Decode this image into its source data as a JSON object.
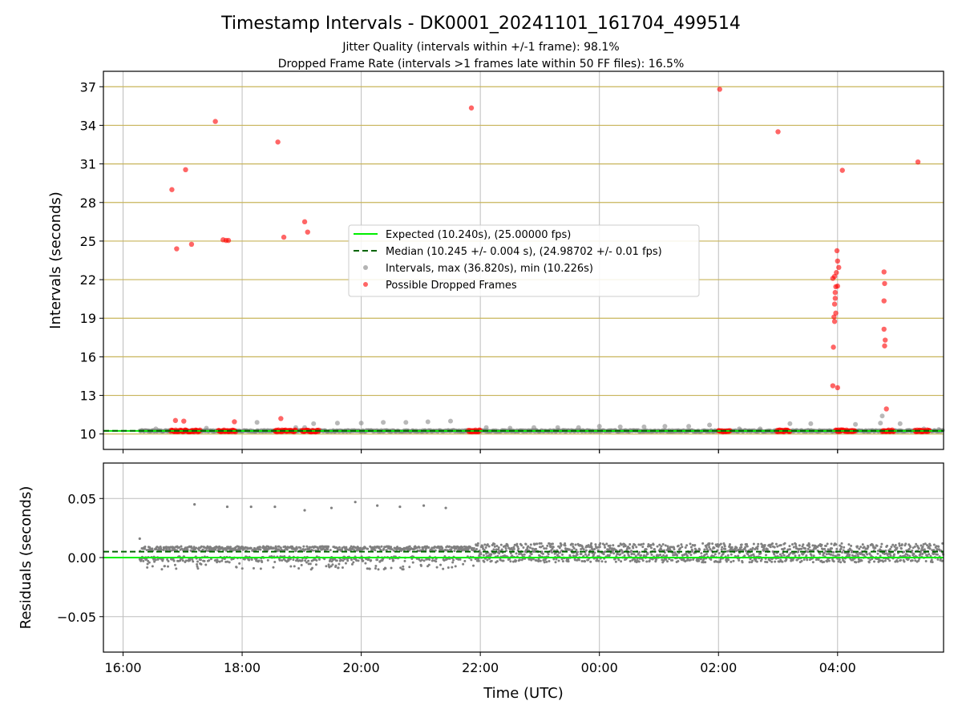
{
  "chart_data": [
    {
      "type": "scatter",
      "title": "Timestamp Intervals - DK0001_20241101_161704_499514",
      "subtitle_lines": [
        "Jitter Quality (intervals within +/-1 frame): 98.1%",
        "Dropped Frame Rate (intervals >1 frames late within 50 FF files): 16.5%"
      ],
      "xlabel": "",
      "ylabel": "Intervals (seconds)",
      "xlim_hours": [
        15.67,
        29.78
      ],
      "ylim": [
        8.8,
        38.2
      ],
      "x_ticks": [
        {
          "hour": 16,
          "label": "16:00"
        },
        {
          "hour": 18,
          "label": "18:00"
        },
        {
          "hour": 20,
          "label": "20:00"
        },
        {
          "hour": 22,
          "label": "22:00"
        },
        {
          "hour": 24,
          "label": "00:00"
        },
        {
          "hour": 26,
          "label": "02:00"
        },
        {
          "hour": 28,
          "label": "04:00"
        }
      ],
      "y_ticks": [
        10,
        13,
        16,
        19,
        22,
        25,
        28,
        31,
        34,
        37
      ],
      "grid": true,
      "expected": 10.24,
      "median": 10.245,
      "legend_position": "center",
      "legend": [
        {
          "kind": "line-solid",
          "color": "#00ee00",
          "label": "Expected (10.240s), (25.00000 fps)"
        },
        {
          "kind": "line-dashed",
          "color": "#006400",
          "label": "Median (10.245 +/- 0.004 s), (24.98702 +/- 0.01 fps)"
        },
        {
          "kind": "dot",
          "color": "#808080",
          "label": "Intervals, max (36.820s), min (10.226s)"
        },
        {
          "kind": "dot",
          "color": "#ff0000",
          "label": "Possible Dropped Frames"
        }
      ],
      "data_start_hour": 16.28,
      "data_end_hour": 29.78,
      "baseline_value": 10.24,
      "clusters_hours": [
        [
          16.8,
          17.3
        ],
        [
          17.6,
          17.9
        ],
        [
          18.55,
          18.9
        ],
        [
          19.0,
          19.3
        ],
        [
          21.8,
          22.0
        ],
        [
          26.0,
          26.2
        ],
        [
          26.98,
          27.2
        ],
        [
          27.97,
          28.3
        ],
        [
          28.75,
          28.95
        ],
        [
          29.3,
          29.55
        ]
      ],
      "gray_outliers": [
        [
          16.55,
          10.4
        ],
        [
          17.4,
          10.45
        ],
        [
          18.25,
          10.9
        ],
        [
          18.9,
          10.5
        ],
        [
          19.05,
          10.5
        ],
        [
          19.2,
          10.8
        ],
        [
          19.6,
          10.85
        ],
        [
          20.0,
          10.85
        ],
        [
          20.37,
          10.9
        ],
        [
          20.75,
          10.9
        ],
        [
          21.12,
          10.95
        ],
        [
          21.5,
          11.0
        ],
        [
          22.1,
          10.5
        ],
        [
          22.5,
          10.45
        ],
        [
          22.9,
          10.5
        ],
        [
          23.3,
          10.5
        ],
        [
          23.65,
          10.5
        ],
        [
          24.0,
          10.6
        ],
        [
          24.35,
          10.55
        ],
        [
          24.75,
          10.55
        ],
        [
          25.1,
          10.6
        ],
        [
          25.5,
          10.6
        ],
        [
          25.85,
          10.7
        ],
        [
          26.35,
          10.4
        ],
        [
          26.7,
          10.4
        ],
        [
          27.2,
          10.8
        ],
        [
          27.55,
          10.8
        ],
        [
          28.3,
          10.75
        ],
        [
          28.72,
          10.85
        ],
        [
          28.75,
          11.4
        ],
        [
          29.05,
          10.8
        ],
        [
          29.45,
          10.4
        ],
        [
          29.7,
          10.35
        ]
      ],
      "red_outliers": [
        [
          16.82,
          29.0
        ],
        [
          16.9,
          24.4
        ],
        [
          17.05,
          30.55
        ],
        [
          17.15,
          24.75
        ],
        [
          17.55,
          34.3
        ],
        [
          17.73,
          25.05
        ],
        [
          17.68,
          25.1
        ],
        [
          17.77,
          25.05
        ],
        [
          18.6,
          32.7
        ],
        [
          18.7,
          25.3
        ],
        [
          19.05,
          26.5
        ],
        [
          19.1,
          25.7
        ],
        [
          21.85,
          35.35
        ],
        [
          26.02,
          36.8
        ],
        [
          27.0,
          33.5
        ],
        [
          27.92,
          22.1
        ],
        [
          27.95,
          22.25
        ],
        [
          27.93,
          16.75
        ],
        [
          27.92,
          13.75
        ],
        [
          27.97,
          21.45
        ],
        [
          27.96,
          21.0
        ],
        [
          28.0,
          21.5
        ],
        [
          27.99,
          24.25
        ],
        [
          28.0,
          23.45
        ],
        [
          28.02,
          22.95
        ],
        [
          27.98,
          22.55
        ],
        [
          27.96,
          20.55
        ],
        [
          27.95,
          20.1
        ],
        [
          27.94,
          19.1
        ],
        [
          27.97,
          19.4
        ],
        [
          27.95,
          18.75
        ],
        [
          28.0,
          13.6
        ],
        [
          28.08,
          30.5
        ],
        [
          28.78,
          22.6
        ],
        [
          28.79,
          21.7
        ],
        [
          28.78,
          20.35
        ],
        [
          28.78,
          18.15
        ],
        [
          28.8,
          17.3
        ],
        [
          28.79,
          16.85
        ],
        [
          28.82,
          11.95
        ],
        [
          29.35,
          31.15
        ],
        [
          16.88,
          11.05
        ],
        [
          17.02,
          11.0
        ],
        [
          17.87,
          10.95
        ],
        [
          18.65,
          11.2
        ]
      ]
    },
    {
      "type": "scatter",
      "title": "",
      "xlabel": "Time (UTC)",
      "ylabel": "Residuals (seconds)",
      "xlim_hours": [
        15.67,
        29.78
      ],
      "ylim": [
        -0.08,
        0.08
      ],
      "x_ticks": [
        {
          "hour": 16,
          "label": "16:00"
        },
        {
          "hour": 18,
          "label": "18:00"
        },
        {
          "hour": 20,
          "label": "20:00"
        },
        {
          "hour": 22,
          "label": "22:00"
        },
        {
          "hour": 24,
          "label": "00:00"
        },
        {
          "hour": 26,
          "label": "02:00"
        },
        {
          "hour": 28,
          "label": "04:00"
        }
      ],
      "y_ticks": [
        {
          "value": 0.05,
          "label": "0.05"
        },
        {
          "value": 0.0,
          "label": "0.00"
        },
        {
          "value": -0.05,
          "label": "−0.05"
        }
      ],
      "grid": true,
      "expected": 0.0,
      "median": 0.005,
      "spikes": [
        [
          16.28,
          0.016
        ],
        [
          17.2,
          0.045
        ],
        [
          17.75,
          0.043
        ],
        [
          18.15,
          0.043
        ],
        [
          18.55,
          0.043
        ],
        [
          19.05,
          0.04
        ],
        [
          19.5,
          0.042
        ],
        [
          19.9,
          0.047
        ],
        [
          20.27,
          0.044
        ],
        [
          20.65,
          0.043
        ],
        [
          21.05,
          0.044
        ],
        [
          21.42,
          0.042
        ]
      ]
    }
  ],
  "colors": {
    "expected": "#00ee00",
    "median": "#006400",
    "intervals": "#808080",
    "dropped": "#ff0000",
    "hgrid": "#c8b45a",
    "vgrid": "#bebebe"
  }
}
